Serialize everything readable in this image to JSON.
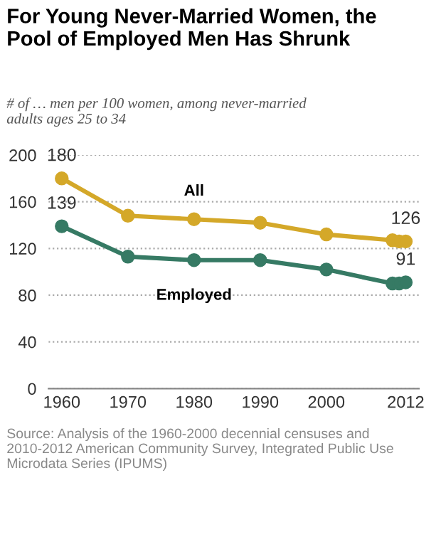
{
  "chart_data": {
    "type": "line",
    "title": "For Young Never-Married Women, the\nPool of Employed Men Has Shrunk",
    "subtitle": "# of … men per 100 women, among never-married\nadults ages 25 to 34",
    "x": [
      1960,
      1970,
      1980,
      1990,
      2000,
      2010,
      2011,
      2012
    ],
    "series": [
      {
        "name": "All",
        "color": "#d4a829",
        "values": [
          180,
          148,
          145,
          142,
          132,
          127,
          126,
          126
        ],
        "value_labels": [
          "180",
          null,
          null,
          null,
          null,
          null,
          null,
          "126"
        ]
      },
      {
        "name": "Employed",
        "color": "#367a64",
        "values": [
          139,
          113,
          110,
          110,
          102,
          90,
          90,
          91
        ],
        "value_labels": [
          "139",
          null,
          null,
          null,
          null,
          null,
          null,
          "91"
        ]
      }
    ],
    "xlim": [
      1958,
      2014
    ],
    "xticks": [
      1960,
      1970,
      1980,
      1990,
      2000,
      2012
    ],
    "ylim": [
      0,
      200
    ],
    "yticks": [
      0,
      40,
      80,
      120,
      160,
      200
    ],
    "grid": "y",
    "marker": "circle",
    "line_style": "solid",
    "legend": false,
    "annotations": [
      "Source: Analysis of the 1960-2000 decennial censuses and 2010-2012 American Community Survey, Integrated Public Use Microdata Series (IPUMS)"
    ]
  }
}
